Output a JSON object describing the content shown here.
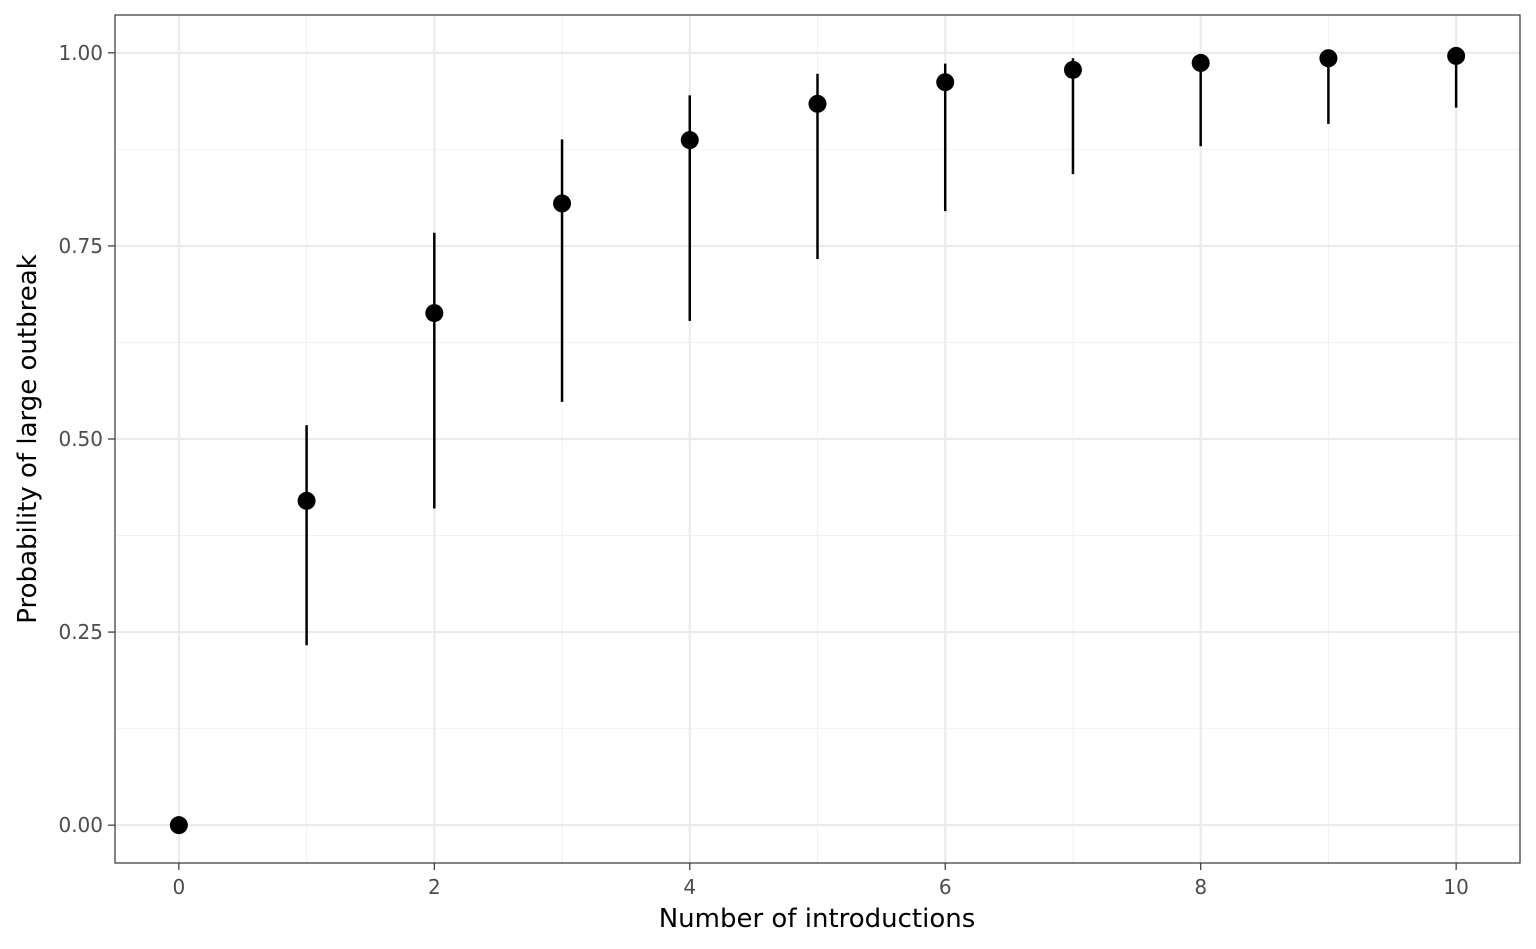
{
  "chart_data": {
    "type": "scatter",
    "title": "",
    "xlabel": "Number of introductions",
    "ylabel": "Probability of large outbreak",
    "xlim": [
      -0.5,
      10.5
    ],
    "ylim": [
      -0.049,
      1.049
    ],
    "x_ticks": [
      0,
      2,
      4,
      6,
      8,
      10
    ],
    "x_tick_labels": [
      "0",
      "2",
      "4",
      "6",
      "8",
      "10"
    ],
    "y_ticks": [
      0,
      0.25,
      0.5,
      0.75,
      1
    ],
    "y_tick_labels": [
      "0.00",
      "0.25",
      "0.50",
      "0.75",
      "1.00"
    ],
    "grid": true,
    "legend": "none",
    "points": [
      {
        "x": 0,
        "y": 0.0,
        "lower": 0.0,
        "upper": 0.0
      },
      {
        "x": 1,
        "y": 0.42,
        "lower": 0.233,
        "upper": 0.518
      },
      {
        "x": 2,
        "y": 0.663,
        "lower": 0.41,
        "upper": 0.767
      },
      {
        "x": 3,
        "y": 0.805,
        "lower": 0.548,
        "upper": 0.888
      },
      {
        "x": 4,
        "y": 0.887,
        "lower": 0.653,
        "upper": 0.945
      },
      {
        "x": 5,
        "y": 0.934,
        "lower": 0.733,
        "upper": 0.973
      },
      {
        "x": 6,
        "y": 0.962,
        "lower": 0.795,
        "upper": 0.986
      },
      {
        "x": 7,
        "y": 0.978,
        "lower": 0.843,
        "upper": 0.993
      },
      {
        "x": 8,
        "y": 0.987,
        "lower": 0.879,
        "upper": 0.987
      },
      {
        "x": 9,
        "y": 0.993,
        "lower": 0.908,
        "upper": 0.993
      },
      {
        "x": 10,
        "y": 0.996,
        "lower": 0.929,
        "upper": 0.996
      }
    ],
    "colors": {
      "points": "#000000",
      "grid_major": "#ebebeb",
      "grid_minor": "#f2f2f2",
      "panel_border": "#333333",
      "tick_text": "#4d4d4d"
    }
  }
}
